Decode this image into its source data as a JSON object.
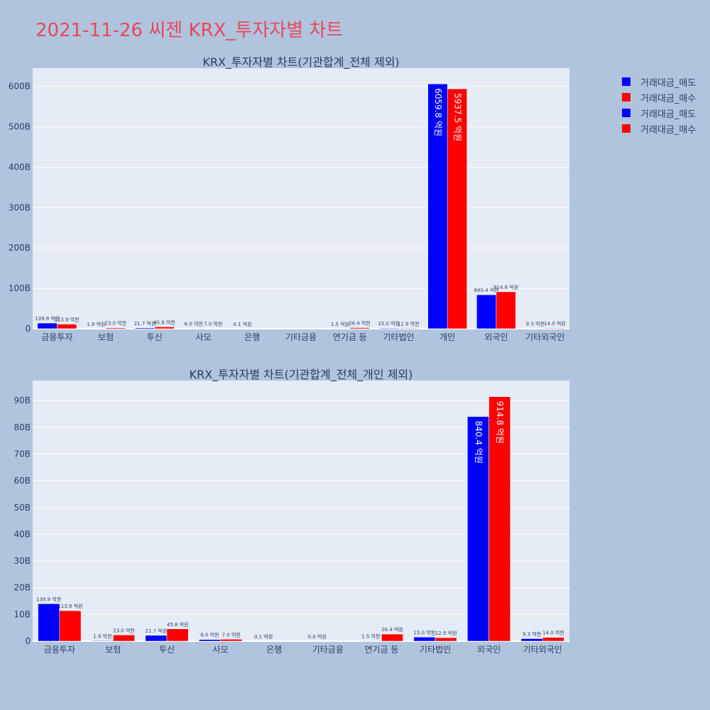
{
  "page": {
    "title": "2021-11-26 씨젠 KRX_투자자별 차트"
  },
  "legend": [
    {
      "label": "거래대금_매도",
      "color": "#0000ff"
    },
    {
      "label": "거래대금_매수",
      "color": "#ff0000"
    },
    {
      "label": "거래대금_매도",
      "color": "#0000ff"
    },
    {
      "label": "거래대금_매수",
      "color": "#ff0000"
    }
  ],
  "chart_data": [
    {
      "type": "bar",
      "title": "KRX_투자자별 차트(기관합계_전체 제외)",
      "categories": [
        "금융투자",
        "보험",
        "투신",
        "사모",
        "은행",
        "기타금융",
        "연기금 등",
        "기타법인",
        "개인",
        "외국인",
        "기타외국인"
      ],
      "series": [
        {
          "name": "거래대금_매도",
          "color": "#0000ff",
          "values": [
            13.99,
            0.19,
            2.17,
            0.6,
            0.01,
            null,
            0.15,
            1.5,
            605.98,
            84.04,
            0.93
          ],
          "labels": [
            "139.9 억원",
            "1.9 억원",
            "21.7 억원",
            "6.0 억원",
            "0.1 억원",
            "",
            "1.5 억원",
            "15.0 억원",
            "6059.8 억원",
            "840.4 억원",
            "9.3 억원"
          ]
        },
        {
          "name": "거래대금_매수",
          "color": "#ff0000",
          "values": [
            11.39,
            2.3,
            4.58,
            0.7,
            null,
            null,
            2.64,
            1.29,
            593.75,
            91.48,
            1.4
          ],
          "labels": [
            "113.9 억원",
            "23.0 억원",
            "45.8 억원",
            "7.0 억원",
            "",
            "",
            "26.4 억원",
            "12.9 억원",
            "5937.5 억원",
            "914.8 억원",
            "14.0 억원"
          ]
        }
      ],
      "yticks": [
        "0",
        "100B",
        "200B",
        "300B",
        "400B",
        "500B",
        "600B"
      ],
      "yunit": "B",
      "ylim": [
        0,
        645
      ],
      "grid": true
    },
    {
      "type": "bar",
      "title": "KRX_투자자별 차트(기관합계_전체_개인 제외)",
      "categories": [
        "금융투자",
        "보험",
        "투신",
        "사모",
        "은행",
        "기타금융",
        "연기금 등",
        "기타법인",
        "외국인",
        "기타외국인"
      ],
      "series": [
        {
          "name": "거래대금_매도",
          "color": "#0000ff",
          "values": [
            13.99,
            0.19,
            2.17,
            0.6,
            0.01,
            0.0,
            0.15,
            1.5,
            84.04,
            0.93
          ],
          "labels": [
            "139.9 억원",
            "1.9 억원",
            "21.7 억원",
            "6.0 억원",
            "0.1 억원",
            "0.0 억원",
            "1.5 억원",
            "15.0 억원",
            "840.4 억원",
            "9.3 억원"
          ]
        },
        {
          "name": "거래대금_매수",
          "color": "#ff0000",
          "values": [
            11.39,
            2.3,
            4.58,
            0.7,
            null,
            null,
            2.64,
            1.29,
            91.48,
            1.4
          ],
          "labels": [
            "113.9 억원",
            "23.0 억원",
            "45.8 억원",
            "7.0 억원",
            "",
            "",
            "26.4 억원",
            "12.9 억원",
            "914.8 억원",
            "14.0 억원"
          ]
        }
      ],
      "yticks": [
        "0",
        "10B",
        "20B",
        "30B",
        "40B",
        "50B",
        "60B",
        "70B",
        "80B",
        "90B"
      ],
      "yunit": "B",
      "ylim": [
        0,
        97.5
      ],
      "grid": true
    }
  ]
}
